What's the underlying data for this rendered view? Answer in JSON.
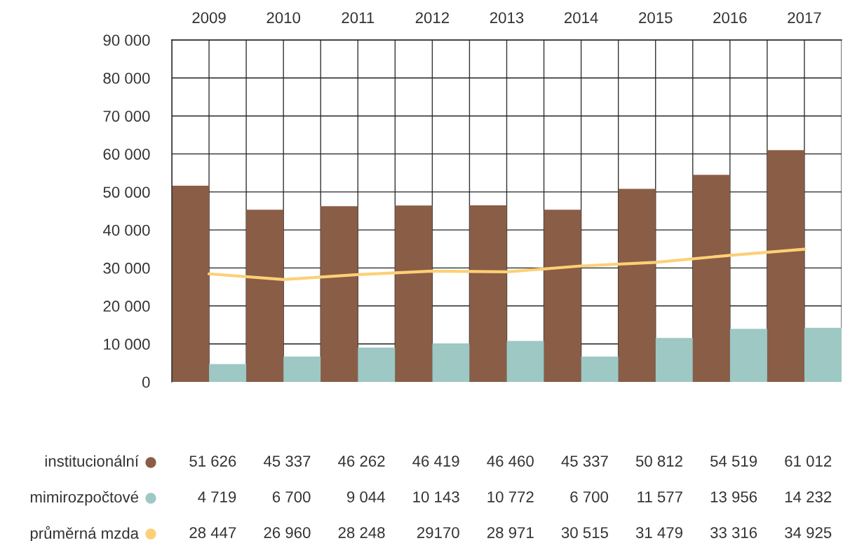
{
  "chart_data": {
    "type": "bar",
    "categories": [
      "2009",
      "2010",
      "2011",
      "2012",
      "2013",
      "2014",
      "2015",
      "2016",
      "2017"
    ],
    "series": [
      {
        "name": "institucionální",
        "color": "#8a5d46",
        "values": [
          51626,
          45337,
          46262,
          46419,
          46460,
          45337,
          50812,
          54519,
          61012
        ],
        "value_labels": [
          "51 626",
          "45 337",
          "46 262",
          "46 419",
          "46 460",
          "45 337",
          "50 812",
          "54 519",
          "61 012"
        ]
      },
      {
        "name": "mimirozpočtové",
        "color": "#9dc8c4",
        "values": [
          4719,
          6700,
          9044,
          10143,
          10772,
          6700,
          11577,
          13956,
          14232
        ],
        "value_labels": [
          "4 719",
          "6 700",
          "9 044",
          "10 143",
          "10 772",
          "6 700",
          "11 577",
          "13 956",
          "14 232"
        ]
      },
      {
        "name": "průměrná mzda",
        "type": "line",
        "color": "#fdd077",
        "values": [
          28447,
          26960,
          28248,
          29170,
          28971,
          30515,
          31479,
          33316,
          34925
        ],
        "value_labels": [
          "28 447",
          "26 960",
          "28 248",
          "29170",
          "28 971",
          "30 515",
          "31 479",
          "33 316",
          "34 925"
        ]
      }
    ],
    "ylim": [
      0,
      90000
    ],
    "yticks": [
      0,
      {
        "value": 10000,
        "label": "10 000"
      },
      {
        "value": 20000,
        "label": "20 000"
      },
      {
        "value": 30000,
        "label": "30 000"
      },
      {
        "value": 40000,
        "label": "40 000"
      },
      {
        "value": 50000,
        "label": "50 000"
      },
      {
        "value": 60000,
        "label": "60 000"
      },
      {
        "value": 70000,
        "label": "70 000"
      },
      {
        "value": 80000,
        "label": "80 000"
      },
      {
        "value": 90000,
        "label": "90 000"
      }
    ],
    "grid": true,
    "legend": "bottom",
    "marker": "none",
    "line_style": "solid"
  }
}
